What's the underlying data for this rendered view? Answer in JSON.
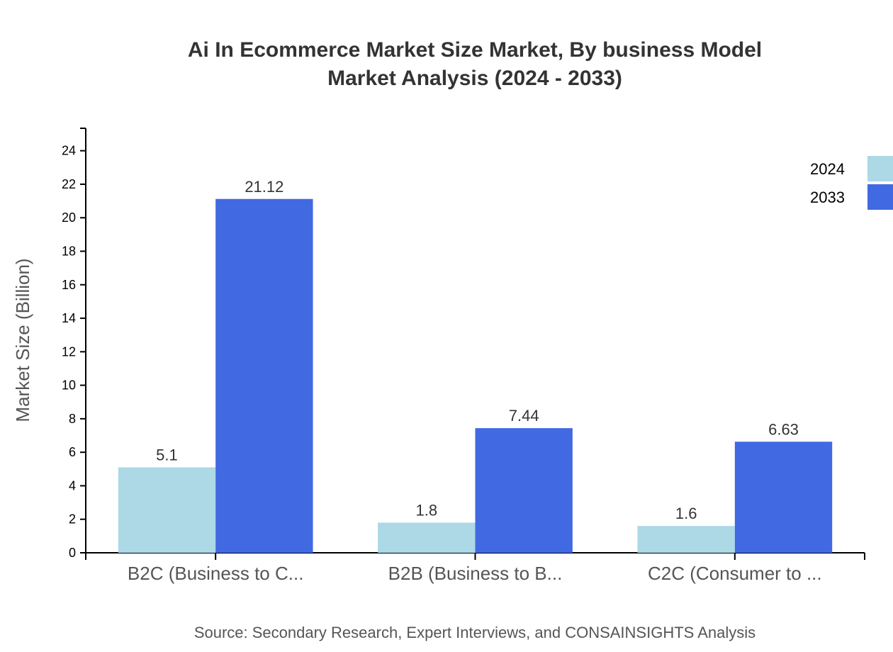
{
  "chart_data": {
    "type": "bar",
    "title": [
      "Ai In Ecommerce Market Size Market, By business Model",
      "Market Analysis (2024 - 2033)"
    ],
    "xlabel": "",
    "ylabel": "Market Size (Billion)",
    "ylim": [
      0,
      25.34
    ],
    "yticks": [
      0,
      2,
      4,
      6,
      8,
      10,
      12,
      14,
      16,
      18,
      20,
      22,
      24
    ],
    "categories": [
      "B2C (Business to C...",
      "B2B (Business to B...",
      "C2C (Consumer to ..."
    ],
    "series": [
      {
        "name": "2024",
        "color": "#ADD8E6",
        "values": [
          5.1,
          1.8,
          1.6
        ]
      },
      {
        "name": "2033",
        "color": "#4169E1",
        "values": [
          21.12,
          7.44,
          6.63
        ]
      }
    ],
    "legend": "top-right",
    "grid": false,
    "source": "Source: Secondary Research, Expert Interviews, and CONSAINSIGHTS Analysis"
  }
}
